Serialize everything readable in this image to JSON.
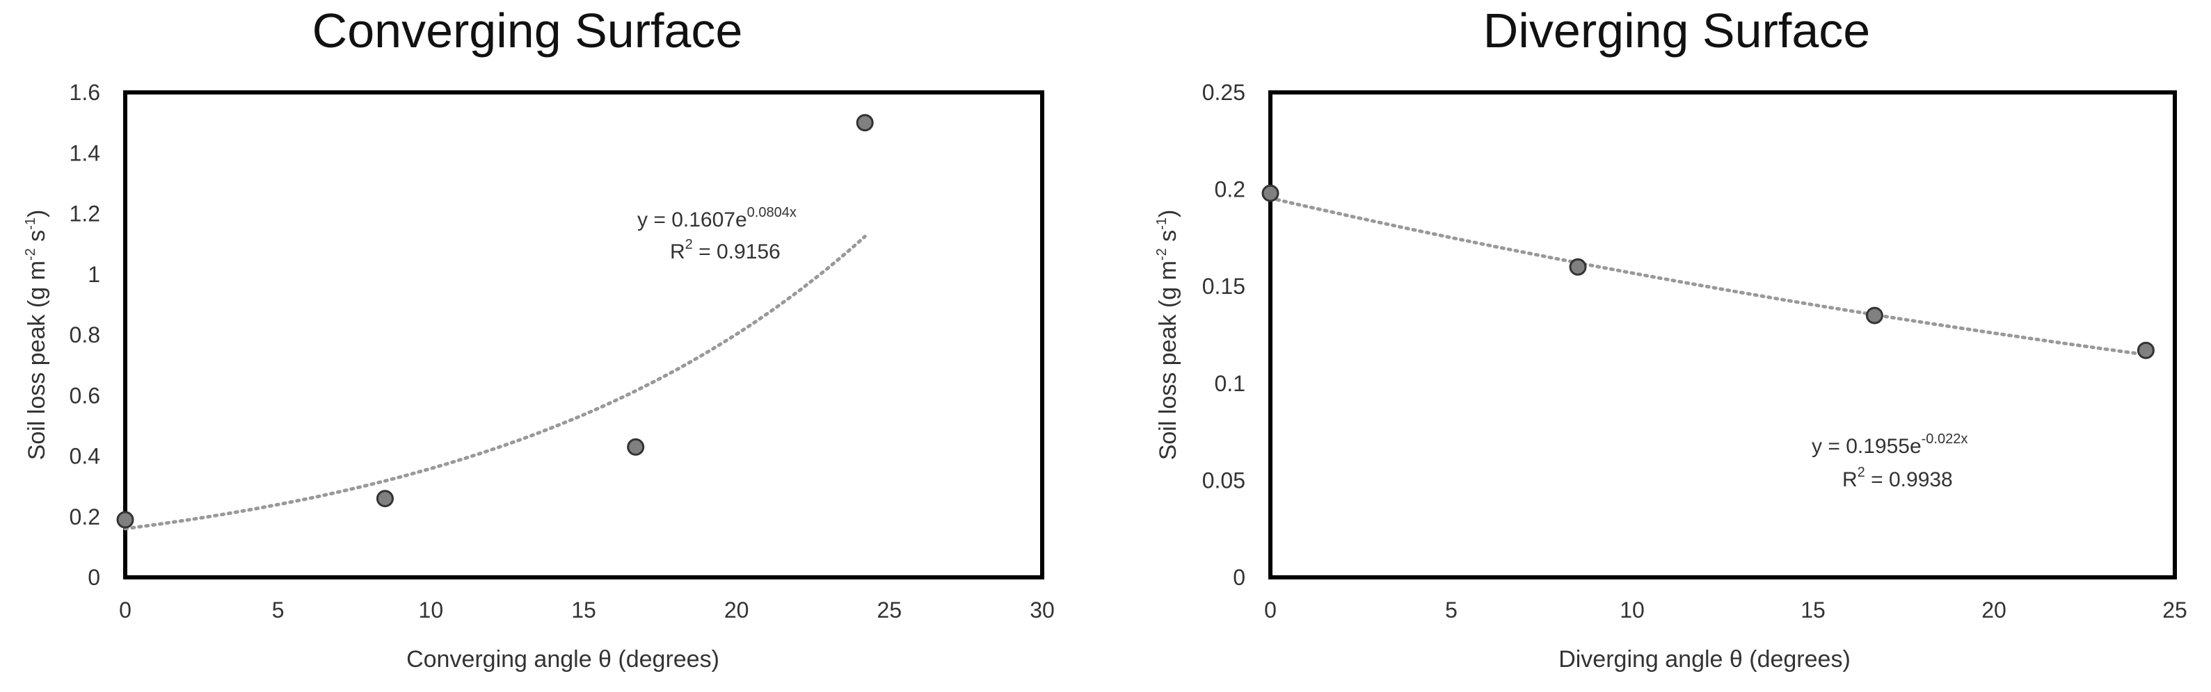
{
  "chart_data": [
    {
      "type": "scatter",
      "title": "Converging Surface",
      "xlabel": "Converging angle θ (degrees)",
      "ylabel": {
        "main": "Soil loss peak (g m",
        "sup1": "-2",
        "mid": " s",
        "sup2": "-1",
        "end": ")"
      },
      "xlim": [
        0,
        30
      ],
      "ylim": [
        0,
        1.6
      ],
      "xticks": [
        0,
        5,
        10,
        15,
        20,
        25,
        30
      ],
      "xtick_labels": [
        "0",
        "5",
        "10",
        "15",
        "20",
        "25",
        "30"
      ],
      "yticks": [
        0,
        0.2,
        0.4,
        0.6,
        0.8,
        1.0,
        1.2,
        1.4,
        1.6
      ],
      "ytick_labels": [
        "0",
        "0.2",
        "0.4",
        "0.6",
        "0.8",
        "1",
        "1.2",
        "1.4",
        "1.6"
      ],
      "grid": false,
      "series": [
        {
          "x": [
            0,
            8.5,
            16.7,
            24.2
          ],
          "y": [
            0.19,
            0.26,
            0.43,
            1.5
          ],
          "marker_color": "#808080"
        }
      ],
      "trendline": {
        "type": "exponential",
        "a": 0.1607,
        "b": 0.0804,
        "x_range": [
          0,
          24.2
        ],
        "color": "#999999"
      },
      "equation": {
        "main": "y = 0.1607e",
        "sup": "0.0804x"
      },
      "r2": {
        "pre": "R",
        "sup": "2",
        "post": " = 0.9156"
      }
    },
    {
      "type": "scatter",
      "title": "Diverging Surface",
      "xlabel": "Diverging angle θ (degrees)",
      "ylabel": {
        "main": "Soil loss peak (g m",
        "sup1": "-2",
        "mid": " s",
        "sup2": "-1",
        "end": ")"
      },
      "xlim": [
        0,
        25
      ],
      "ylim": [
        0,
        0.25
      ],
      "xticks": [
        0,
        5,
        10,
        15,
        20,
        25
      ],
      "xtick_labels": [
        "0",
        "5",
        "10",
        "15",
        "20",
        "25"
      ],
      "yticks": [
        0,
        0.05,
        0.1,
        0.15,
        0.2,
        0.25
      ],
      "ytick_labels": [
        "0",
        "0.05",
        "0.1",
        "0.15",
        "0.2",
        "0.25"
      ],
      "grid": false,
      "series": [
        {
          "x": [
            0,
            8.5,
            16.7,
            24.2
          ],
          "y": [
            0.198,
            0.16,
            0.135,
            0.117
          ],
          "marker_color": "#808080"
        }
      ],
      "trendline": {
        "type": "exponential",
        "a": 0.1955,
        "b": -0.022,
        "x_range": [
          0,
          24.2
        ],
        "color": "#999999"
      },
      "equation": {
        "main": "y = 0.1955e",
        "sup": "-0.022x"
      },
      "r2": {
        "pre": "R",
        "sup": "2",
        "post": " = 0.9938"
      }
    }
  ]
}
